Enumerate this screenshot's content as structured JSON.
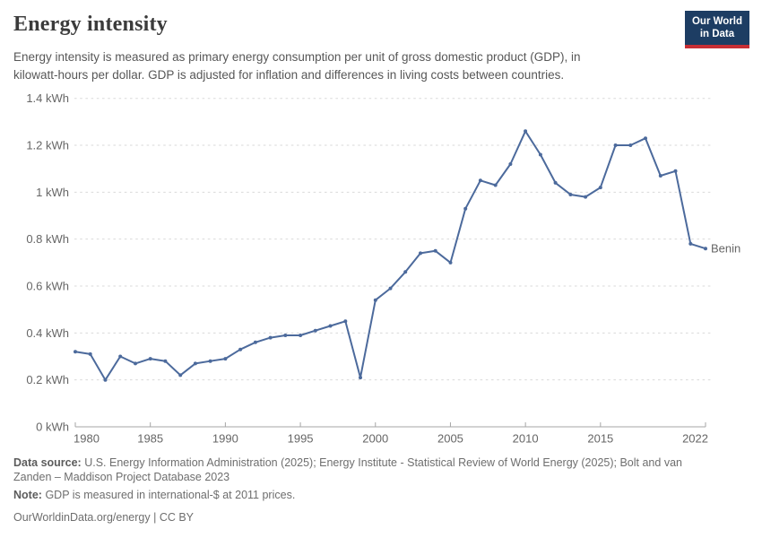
{
  "header": {
    "title": "Energy intensity",
    "subtitle_lines": [
      "Energy intensity is measured as primary energy consumption per unit of gross domestic product (GDP), in",
      "kilowatt-hours per dollar. GDP is adjusted for inflation and differences in living costs between countries."
    ],
    "logo": {
      "line1": "Our World",
      "line2": "in Data"
    }
  },
  "chart_data": {
    "type": "line",
    "title": "Energy intensity",
    "xlabel": "",
    "ylabel": "",
    "unit": "kWh",
    "xlim": [
      1980,
      2022
    ],
    "ylim": [
      0,
      1.4
    ],
    "grid": "horizontal-dashed",
    "legend_position": "line-end-label",
    "line_color": "#4c6a9c",
    "entity_label_color": "#4c6a9c",
    "x": [
      1980,
      1981,
      1982,
      1983,
      1984,
      1985,
      1986,
      1987,
      1988,
      1989,
      1990,
      1991,
      1992,
      1993,
      1994,
      1995,
      1996,
      1997,
      1998,
      1999,
      2000,
      2001,
      2002,
      2003,
      2004,
      2005,
      2006,
      2007,
      2008,
      2009,
      2010,
      2011,
      2012,
      2013,
      2014,
      2015,
      2016,
      2017,
      2018,
      2019,
      2020,
      2021,
      2022
    ],
    "series": [
      {
        "name": "Benin",
        "values": [
          0.32,
          0.31,
          0.2,
          0.3,
          0.27,
          0.29,
          0.28,
          0.22,
          0.27,
          0.28,
          0.29,
          0.33,
          0.36,
          0.38,
          0.39,
          0.39,
          0.41,
          0.43,
          0.45,
          0.21,
          0.54,
          0.59,
          0.66,
          0.74,
          0.75,
          0.7,
          0.93,
          1.05,
          1.03,
          1.12,
          1.26,
          1.16,
          1.04,
          0.99,
          0.98,
          1.02,
          1.2,
          1.2,
          1.23,
          1.07,
          1.09,
          0.78,
          0.76
        ]
      }
    ],
    "xticks": [
      1980,
      1985,
      1990,
      1995,
      2000,
      2005,
      2010,
      2015,
      2022
    ],
    "xtick_labels": [
      "1980",
      "1985",
      "1990",
      "1995",
      "2000",
      "2005",
      "2010",
      "2015",
      "2022"
    ],
    "yticks": [
      0,
      0.2,
      0.4,
      0.6,
      0.8,
      1,
      1.2,
      1.4
    ],
    "ytick_labels": [
      "0 kWh",
      "0.2 kWh",
      "0.4 kWh",
      "0.6 kWh",
      "0.8 kWh",
      "1 kWh",
      "1.2 kWh",
      "1.4 kWh"
    ]
  },
  "footer": {
    "data_source_label": "Data source:",
    "data_source_rest": "U.S. Energy Information Administration (2025); Energy Institute - Statistical Review of World Energy (2025); Bolt and van",
    "data_source_line2": "Zanden – Maddison Project Database 2023",
    "note_label": "Note:",
    "note_rest": "GDP is measured in international-$ at 2011 prices.",
    "url": "OurWorldinData.org/energy",
    "license": " | CC BY"
  },
  "colors": {
    "line": "#4c6a9c",
    "grid": "#dadada",
    "axis": "#a6a6a6",
    "tick_text": "#666666",
    "logo_bg": "#1d3d63",
    "logo_red": "#c72e34"
  }
}
